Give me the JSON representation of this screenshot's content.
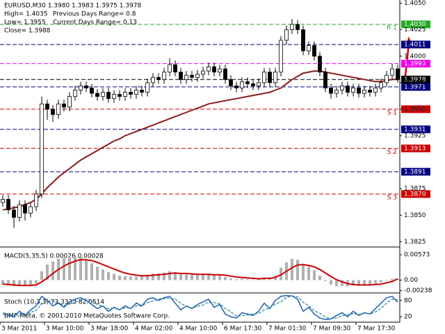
{
  "chart_data": [
    {
      "type": "candlestick",
      "title": "EURUSD,M30  1.3980 1.3983 1.3975 1.3978",
      "annotations": [
        "High= 1.4035",
        "Previous Days Range= 0.8",
        "Low= 1.3955",
        "Current Days Range= 0.13",
        "Close= 1.3988"
      ],
      "credit": "BMF-Meta, © 2001-2010 MetaQuotes Software Corp.",
      "categories": [
        "3 Mar 2011",
        null,
        null,
        null,
        null,
        null,
        null,
        null,
        "3 Mar 10:00",
        null,
        null,
        null,
        null,
        null,
        null,
        null,
        "3 Mar 18:00",
        null,
        null,
        null,
        null,
        null,
        null,
        null,
        "4 Mar 02:00",
        null,
        null,
        null,
        null,
        null,
        null,
        null,
        "4 Mar 10:00",
        null,
        null,
        null,
        null,
        null,
        null,
        null,
        "6 Mar 17:30",
        null,
        null,
        null,
        null,
        null,
        null,
        null,
        "7 Mar 01:30",
        null,
        null,
        null,
        null,
        null,
        null,
        null,
        "7 Mar 09:30",
        null,
        null,
        null,
        null,
        null,
        null,
        null,
        "7 Mar 17:30",
        null,
        null,
        null,
        null,
        null,
        null,
        null
      ],
      "open": [
        1.3862,
        1.3865,
        1.3855,
        1.3848,
        1.386,
        1.3852,
        1.3858,
        1.387,
        1.3955,
        1.395,
        1.3945,
        1.3955,
        1.3952,
        1.3962,
        1.3968,
        1.3972,
        1.397,
        1.3965,
        1.3962,
        1.3966,
        1.396,
        1.3964,
        1.3962,
        1.3966,
        1.3964,
        1.3968,
        1.3966,
        1.3975,
        1.398,
        1.3978,
        1.3985,
        1.3992,
        1.3985,
        1.3978,
        1.3982,
        1.398,
        1.3983,
        1.3986,
        1.399,
        1.3985,
        1.3988,
        1.3978,
        1.3972,
        1.397,
        1.3976,
        1.3974,
        1.3972,
        1.3975,
        1.3985,
        1.3975,
        1.3985,
        1.4015,
        1.4025,
        1.403,
        1.4025,
        1.4005,
        1.401,
        1.4,
        1.3985,
        1.397,
        1.3965,
        1.3968,
        1.3972,
        1.3966,
        1.397,
        1.3965,
        1.3968,
        1.3966,
        1.397,
        1.3975,
        1.3982,
        1.3988
      ],
      "high": [
        1.3869,
        1.3869,
        1.3859,
        1.3864,
        1.3864,
        1.3862,
        1.3874,
        1.3962,
        1.3959,
        1.3954,
        1.3959,
        1.3959,
        1.3966,
        1.3972,
        1.3976,
        1.3976,
        1.3974,
        1.3969,
        1.397,
        1.397,
        1.3968,
        1.3968,
        1.397,
        1.397,
        1.3972,
        1.3972,
        1.3979,
        1.3984,
        1.3984,
        1.3989,
        1.3998,
        1.3996,
        1.3989,
        1.3986,
        1.3986,
        1.3987,
        1.399,
        1.3994,
        1.3994,
        1.3992,
        1.3992,
        1.3982,
        1.3976,
        1.398,
        1.398,
        1.3978,
        1.3979,
        1.3989,
        1.3989,
        1.3989,
        1.4019,
        1.4029,
        1.4035,
        1.4034,
        1.4029,
        1.4014,
        1.4014,
        1.4004,
        1.3989,
        1.3974,
        1.3972,
        1.3976,
        1.3976,
        1.3974,
        1.3974,
        1.3972,
        1.3972,
        1.3974,
        1.3979,
        1.3986,
        1.3993,
        1.3992
      ],
      "low": [
        1.3858,
        1.3851,
        1.3838,
        1.3844,
        1.3845,
        1.3848,
        1.3854,
        1.3866,
        1.394,
        1.3938,
        1.3941,
        1.3948,
        1.3948,
        1.3958,
        1.3964,
        1.3966,
        1.3961,
        1.3958,
        1.3958,
        1.3956,
        1.3956,
        1.3958,
        1.3958,
        1.396,
        1.396,
        1.3962,
        1.3962,
        1.3971,
        1.3974,
        1.3974,
        1.3981,
        1.3981,
        1.3974,
        1.3974,
        1.3976,
        1.3976,
        1.3979,
        1.3982,
        1.3981,
        1.3981,
        1.3974,
        1.3968,
        1.3966,
        1.3966,
        1.397,
        1.3968,
        1.3968,
        1.3971,
        1.3971,
        1.3971,
        1.3981,
        1.4011,
        1.4021,
        1.4021,
        1.4001,
        1.4001,
        1.3996,
        1.3981,
        1.3966,
        1.396,
        1.3961,
        1.3964,
        1.3962,
        1.3962,
        1.3961,
        1.3961,
        1.3962,
        1.3962,
        1.3966,
        1.3971,
        1.3978,
        1.3975
      ],
      "close": [
        1.3865,
        1.3855,
        1.3848,
        1.386,
        1.3852,
        1.3858,
        1.387,
        1.3955,
        1.395,
        1.3945,
        1.3955,
        1.3952,
        1.3962,
        1.3968,
        1.3972,
        1.397,
        1.3965,
        1.3962,
        1.3966,
        1.396,
        1.3964,
        1.3962,
        1.3966,
        1.3964,
        1.3968,
        1.3966,
        1.3975,
        1.398,
        1.3978,
        1.3985,
        1.3992,
        1.3985,
        1.3978,
        1.3982,
        1.398,
        1.3983,
        1.3986,
        1.399,
        1.3985,
        1.3988,
        1.3978,
        1.3972,
        1.397,
        1.3976,
        1.3974,
        1.3972,
        1.3975,
        1.3985,
        1.3975,
        1.3985,
        1.4015,
        1.4025,
        1.403,
        1.4025,
        1.4005,
        1.401,
        1.4,
        1.3985,
        1.397,
        1.3965,
        1.3968,
        1.3972,
        1.3966,
        1.397,
        1.3965,
        1.3968,
        1.3966,
        1.397,
        1.3975,
        1.3982,
        1.3988,
        1.3978
      ],
      "series": [
        {
          "color": "#8b1a1a",
          "values": [
            1.3855,
            1.3856,
            1.3857,
            1.3858,
            1.386,
            1.3862,
            1.3865,
            1.387,
            1.3876,
            1.3881,
            1.3886,
            1.389,
            1.3894,
            1.3898,
            1.3902,
            1.3905,
            1.3908,
            1.3911,
            1.3914,
            1.3917,
            1.392,
            1.3922,
            1.3925,
            1.3927,
            1.3929,
            1.3931,
            1.3933,
            1.3935,
            1.3937,
            1.3939,
            1.3941,
            1.3943,
            1.3945,
            1.3947,
            1.3949,
            1.3951,
            1.3953,
            1.3955,
            1.3956,
            1.3957,
            1.3958,
            1.3959,
            1.396,
            1.3961,
            1.3962,
            1.3963,
            1.3964,
            1.3965,
            1.3966,
            1.3968,
            1.397,
            1.3974,
            1.3978,
            1.3981,
            1.3984,
            1.3985,
            1.3986,
            1.3986,
            1.3985,
            1.3984,
            1.3983,
            1.3982,
            1.3981,
            1.398,
            1.3979,
            1.3978,
            1.3977,
            1.3976,
            1.3976,
            1.3977,
            1.3978,
            1.3978
          ]
        }
      ],
      "levels": [
        {
          "value": 1.403,
          "label": "1.4030",
          "color": "#22aa22",
          "tag": "R 1"
        },
        {
          "value": 1.4011,
          "label": "1.4011",
          "color": "#000080"
        },
        {
          "value": 1.3993,
          "label": "1.3993",
          "color": "#ee00ee"
        },
        {
          "value": 1.3978,
          "label": "1.3978",
          "color": "#000000"
        },
        {
          "value": 1.3971,
          "label": "1.3971",
          "color": "#000080"
        },
        {
          "value": 1.395,
          "label": "1.3950",
          "color": "#cc0000",
          "tag": "S 1"
        },
        {
          "value": 1.3931,
          "label": "1.3931",
          "color": "#000080"
        },
        {
          "value": 1.3913,
          "label": "1.3913",
          "color": "#cc0000",
          "tag": "S 2"
        },
        {
          "value": 1.3891,
          "label": "1.3891",
          "color": "#000080"
        },
        {
          "value": 1.387,
          "label": "1.3870",
          "color": "#cc0000",
          "tag": "S 3"
        }
      ],
      "ylim": [
        1.382,
        1.4053
      ],
      "yticks": [
        {
          "value": 1.405,
          "label": "1.4050"
        },
        {
          "value": 1.4025,
          "label": "1.4025"
        },
        {
          "value": 1.4,
          "label": "1.4000"
        },
        {
          "value": 1.3975,
          "label": "1.3975"
        },
        {
          "value": 1.395,
          "label": "1.3950"
        },
        {
          "value": 1.3925,
          "label": "1.3925"
        },
        {
          "value": 1.3875,
          "label": "1.3875"
        },
        {
          "value": 1.385,
          "label": "1.3850"
        },
        {
          "value": 1.3825,
          "label": "1.3825"
        }
      ]
    },
    {
      "type": "bar",
      "title": "MACD(5,35,5) 0.00026 0.00028",
      "series": [
        {
          "color": "#b0b0b0",
          "values": [
            -0.001,
            -0.0012,
            -0.0014,
            -0.0012,
            -0.0013,
            -0.0012,
            -0.0008,
            0.002,
            0.0035,
            0.0042,
            0.0048,
            0.005,
            0.0052,
            0.0053,
            0.005,
            0.0045,
            0.0038,
            0.003,
            0.0024,
            0.0018,
            0.0014,
            0.001,
            0.0009,
            0.0008,
            0.0008,
            0.0009,
            0.0012,
            0.0015,
            0.0015,
            0.0017,
            0.002,
            0.0018,
            0.0014,
            0.0013,
            0.0012,
            0.0011,
            0.0012,
            0.0013,
            0.0011,
            0.001,
            0.0007,
            0.0004,
            0.0002,
            0.0003,
            0.0002,
            0.0001,
            0.0002,
            0.0006,
            0.0006,
            0.001,
            0.0028,
            0.004,
            0.0048,
            0.0046,
            0.0036,
            0.003,
            0.0022,
            0.001,
            -0.0002,
            -0.001,
            -0.0014,
            -0.0013,
            -0.0014,
            -0.0012,
            -0.0013,
            -0.0011,
            -0.0011,
            -0.0008,
            -0.0005,
            -0.0001,
            0.0003,
            0.0003
          ]
        },
        {
          "color": "#cc0000",
          "style": "line",
          "values": [
            -0.0009,
            -0.001,
            -0.0011,
            -0.0012,
            -0.0012,
            -0.0012,
            -0.0011,
            -0.0004,
            0.0005,
            0.0015,
            0.0024,
            0.0032,
            0.0038,
            0.0043,
            0.0046,
            0.0046,
            0.0044,
            0.004,
            0.0035,
            0.003,
            0.0025,
            0.002,
            0.0016,
            0.0013,
            0.0011,
            0.001,
            0.001,
            0.0011,
            0.0012,
            0.0013,
            0.0015,
            0.0016,
            0.0015,
            0.0015,
            0.0014,
            0.0013,
            0.0013,
            0.0013,
            0.0012,
            0.0012,
            0.0011,
            0.0009,
            0.0007,
            0.0006,
            0.0005,
            0.0004,
            0.0003,
            0.0004,
            0.0004,
            0.0006,
            0.0012,
            0.002,
            0.0028,
            0.0034,
            0.0035,
            0.0033,
            0.003,
            0.0024,
            0.0016,
            0.0008,
            0.0001,
            -0.0004,
            -0.0008,
            -0.001,
            -0.0011,
            -0.0011,
            -0.0011,
            -0.001,
            -0.0009,
            -0.0006,
            -0.0003,
            0.0003
          ]
        }
      ],
      "ylim": [
        -0.0029,
        0.007
      ],
      "yticks": [
        {
          "value": 0.00573,
          "label": "0.00573"
        },
        {
          "value": 0,
          "label": "0.00"
        },
        {
          "value": -0.00238,
          "label": "-0.00238"
        }
      ]
    },
    {
      "type": "line",
      "title": "Stoch (10,3,3) 73.3333 82.0514",
      "series": [
        {
          "color": "#1a5fb4",
          "values": [
            30,
            25,
            20,
            40,
            25,
            45,
            60,
            95,
            80,
            60,
            70,
            55,
            75,
            85,
            90,
            80,
            65,
            50,
            60,
            40,
            55,
            45,
            60,
            50,
            70,
            60,
            85,
            90,
            80,
            90,
            95,
            70,
            45,
            60,
            50,
            65,
            75,
            85,
            55,
            65,
            30,
            20,
            15,
            35,
            30,
            25,
            40,
            70,
            50,
            80,
            95,
            98,
            97,
            85,
            40,
            55,
            30,
            15,
            10,
            12,
            25,
            35,
            20,
            40,
            25,
            35,
            30,
            50,
            70,
            90,
            95,
            73.3333
          ]
        },
        {
          "color": "#2a7f8f",
          "dash": true,
          "values": [
            35,
            30,
            25,
            28,
            28,
            37,
            43,
            67,
            78,
            78,
            70,
            62,
            67,
            72,
            83,
            85,
            78,
            65,
            58,
            50,
            52,
            47,
            53,
            52,
            60,
            60,
            72,
            78,
            85,
            87,
            88,
            85,
            70,
            58,
            52,
            58,
            63,
            75,
            72,
            68,
            50,
            38,
            22,
            23,
            27,
            30,
            32,
            45,
            53,
            67,
            75,
            91,
            97,
            93,
            74,
            60,
            42,
            33,
            18,
            12,
            16,
            24,
            27,
            32,
            28,
            33,
            30,
            38,
            50,
            70,
            85,
            82.0514
          ]
        }
      ],
      "ylim": [
        0,
        100
      ],
      "yticks": [
        80,
        20
      ]
    }
  ]
}
